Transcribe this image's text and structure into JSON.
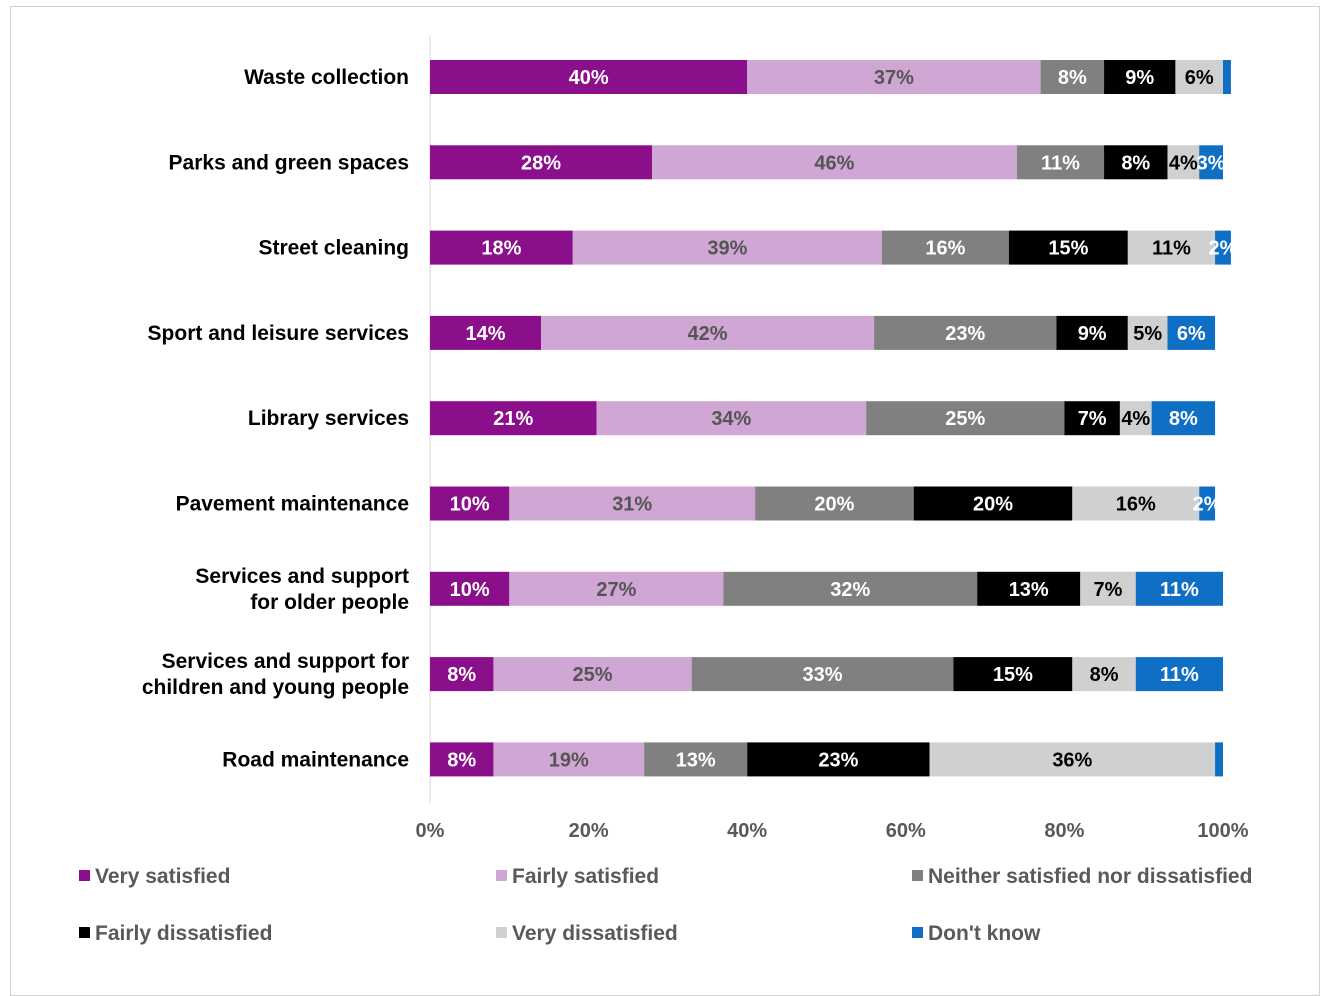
{
  "chart_data": {
    "type": "bar",
    "orientation": "horizontal-stacked-100",
    "categories": [
      [
        "Waste collection"
      ],
      [
        "Parks and green spaces"
      ],
      [
        "Street cleaning"
      ],
      [
        "Sport and leisure services"
      ],
      [
        "Library services"
      ],
      [
        "Pavement maintenance"
      ],
      [
        "Services and support",
        "for older people"
      ],
      [
        "Services and support for",
        "children and young people"
      ],
      [
        "Road maintenance"
      ]
    ],
    "series": [
      {
        "name": "Very satisfied",
        "color": "#8B0E8B",
        "label_color": "#ffffff",
        "values": [
          40,
          28,
          18,
          14,
          21,
          10,
          10,
          8,
          8
        ]
      },
      {
        "name": "Fairly satisfied",
        "color": "#CFA6D4",
        "label_color": "#555555",
        "values": [
          37,
          46,
          39,
          42,
          34,
          31,
          27,
          25,
          19
        ]
      },
      {
        "name": "Neither satisfied nor dissatisfied",
        "color": "#808080",
        "label_color": "#ffffff",
        "values": [
          8,
          11,
          16,
          23,
          25,
          20,
          32,
          33,
          13
        ]
      },
      {
        "name": "Fairly dissatisfied",
        "color": "#000000",
        "label_color": "#ffffff",
        "values": [
          9,
          8,
          15,
          9,
          7,
          20,
          13,
          15,
          23
        ]
      },
      {
        "name": "Very dissatisfied",
        "color": "#D0D0D0",
        "label_color": "#000000",
        "values": [
          6,
          4,
          11,
          5,
          4,
          16,
          7,
          8,
          36
        ]
      },
      {
        "name": "Don't know",
        "color": "#0E6FC4",
        "label_color": "#ffffff",
        "values": [
          1,
          3,
          2,
          6,
          8,
          2,
          11,
          11,
          1
        ]
      }
    ],
    "hidden_labels": [
      [
        0,
        5
      ],
      [
        8,
        5
      ]
    ],
    "xlim": [
      0,
      100
    ],
    "x_ticks": [
      "0%",
      "20%",
      "40%",
      "60%",
      "80%",
      "100%"
    ],
    "legend_position": "bottom",
    "grid": false
  }
}
